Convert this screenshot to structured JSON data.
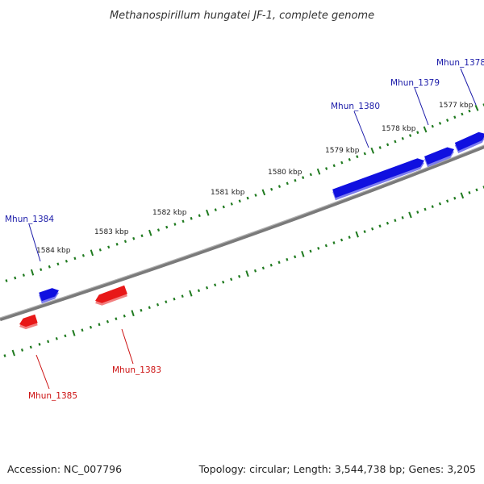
{
  "title": "Methanospirillum hungatei JF-1, complete genome",
  "footer": {
    "accession": "Accession: NC_007796",
    "topology": "Topology: circular; Length: 3,544,738 bp; Genes: 3,205"
  },
  "colors": {
    "forward_strand": "#1010e0",
    "reverse_strand": "#e81818",
    "backbone": "#7a7a7a",
    "ticks": "#1f7a1f",
    "label_forward": "#1a1aa8",
    "label_reverse": "#cc1010"
  },
  "ruler": {
    "labels": [
      "1577 kbp",
      "1578 kbp",
      "1579 kbp",
      "1580 kbp",
      "1581 kbp",
      "1582 kbp",
      "1583 kbp",
      "1584 kbp"
    ]
  },
  "genes": [
    {
      "id": "Mhun_1378",
      "strand": "forward"
    },
    {
      "id": "Mhun_1379",
      "strand": "forward"
    },
    {
      "id": "Mhun_1380",
      "strand": "forward"
    },
    {
      "id": "Mhun_1383",
      "strand": "reverse"
    },
    {
      "id": "Mhun_1384",
      "strand": "forward"
    },
    {
      "id": "Mhun_1385",
      "strand": "reverse"
    }
  ]
}
